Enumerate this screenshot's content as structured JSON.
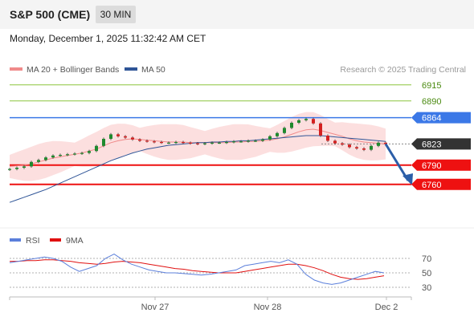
{
  "header": {
    "title": "S&P 500 (CME)",
    "timeframe": "30 MIN",
    "datetime": "Monday, December 1, 2025 11:32:42 AM CET"
  },
  "legend": {
    "ma20_label": "MA 20 + Bollinger Bands",
    "ma50_label": "MA 50",
    "copyright": "Research © 2025 Trading Central",
    "colors": {
      "ma20": "#f08a8a",
      "ma50": "#2f5597"
    }
  },
  "colors": {
    "resistance": "#8cc63f",
    "current_line": "#3b78e7",
    "support": "#ee1111",
    "current_price_box": "#333333",
    "forecast_arrow": "#2c5ea8",
    "bollinger_fill": "#fbd9d9",
    "candle_up": "#1f8a2e",
    "candle_down": "#d42020",
    "rsi": "#5b7fdb",
    "rsi_ma": "#e01010"
  },
  "chart_data": {
    "type": "candlestick",
    "price_levels": [
      {
        "value": 6915,
        "kind": "resistance",
        "label": "6915"
      },
      {
        "value": 6890,
        "kind": "resistance",
        "label": "6890"
      },
      {
        "value": 6864,
        "kind": "pivot",
        "label": "6864"
      },
      {
        "value": 6823,
        "kind": "last",
        "label": "6823"
      },
      {
        "value": 6790,
        "kind": "support",
        "label": "6790"
      },
      {
        "value": 6760,
        "kind": "support",
        "label": "6760"
      }
    ],
    "x_ticks": [
      "Nov 27",
      "Nov 28",
      "Dec 2"
    ],
    "close_series": [
      6784,
      6786,
      6788,
      6795,
      6798,
      6802,
      6805,
      6806,
      6807,
      6808,
      6809,
      6812,
      6820,
      6831,
      6838,
      6835,
      6833,
      6830,
      6828,
      6827,
      6826,
      6825,
      6825,
      6826,
      6825,
      6824,
      6823,
      6824,
      6825,
      6825,
      6826,
      6827,
      6827,
      6828,
      6828,
      6830,
      6835,
      6840,
      6848,
      6856,
      6860,
      6862,
      6855,
      6836,
      6828,
      6824,
      6822,
      6818,
      6816,
      6814,
      6820,
      6825,
      6823
    ],
    "ma20": [
      6788,
      6789,
      6790,
      6792,
      6795,
      6798,
      6801,
      6803,
      6805,
      6807,
      6809,
      6812,
      6815,
      6820,
      6825,
      6828,
      6830,
      6831,
      6830,
      6829,
      6828,
      6827,
      6826,
      6826,
      6826,
      6825,
      6825,
      6825,
      6825,
      6825,
      6825,
      6826,
      6826,
      6827,
      6827,
      6828,
      6829,
      6831,
      6834,
      6838,
      6842,
      6845,
      6846,
      6844,
      6841,
      6838,
      6835,
      6831,
      6828,
      6826,
      6825,
      6824,
      6823
    ],
    "ma50": [
      6732,
      6736,
      6740,
      6744,
      6748,
      6752,
      6757,
      6762,
      6767,
      6772,
      6777,
      6782,
      6787,
      6792,
      6797,
      6801,
      6805,
      6809,
      6812,
      6815,
      6817,
      6819,
      6821,
      6822,
      6823,
      6824,
      6825,
      6825,
      6826,
      6826,
      6827,
      6827,
      6828,
      6828,
      6829,
      6830,
      6831,
      6832,
      6833,
      6834,
      6835,
      6836,
      6836,
      6836,
      6835,
      6834,
      6833,
      6832,
      6831,
      6830,
      6829,
      6828,
      6827
    ],
    "rsi": {
      "levels": [
        70,
        50,
        30
      ],
      "rsi_values": [
        64,
        66,
        68,
        70,
        72,
        70,
        66,
        58,
        52,
        56,
        60,
        70,
        76,
        68,
        62,
        58,
        54,
        52,
        50,
        50,
        49,
        48,
        47,
        48,
        50,
        52,
        54,
        60,
        62,
        64,
        66,
        64,
        68,
        62,
        48,
        40,
        36,
        34,
        36,
        40,
        44,
        48,
        52,
        50
      ],
      "ma9_values": [
        66,
        66,
        67,
        67,
        68,
        68,
        67,
        66,
        64,
        63,
        62,
        63,
        65,
        66,
        65,
        64,
        62,
        60,
        58,
        56,
        55,
        53,
        52,
        51,
        50,
        50,
        50,
        52,
        54,
        56,
        58,
        60,
        62,
        62,
        60,
        57,
        53,
        48,
        44,
        42,
        41,
        42,
        44,
        46
      ]
    }
  },
  "rsi_legend": {
    "rsi_label": "RSI",
    "ma_label": "9MA"
  }
}
